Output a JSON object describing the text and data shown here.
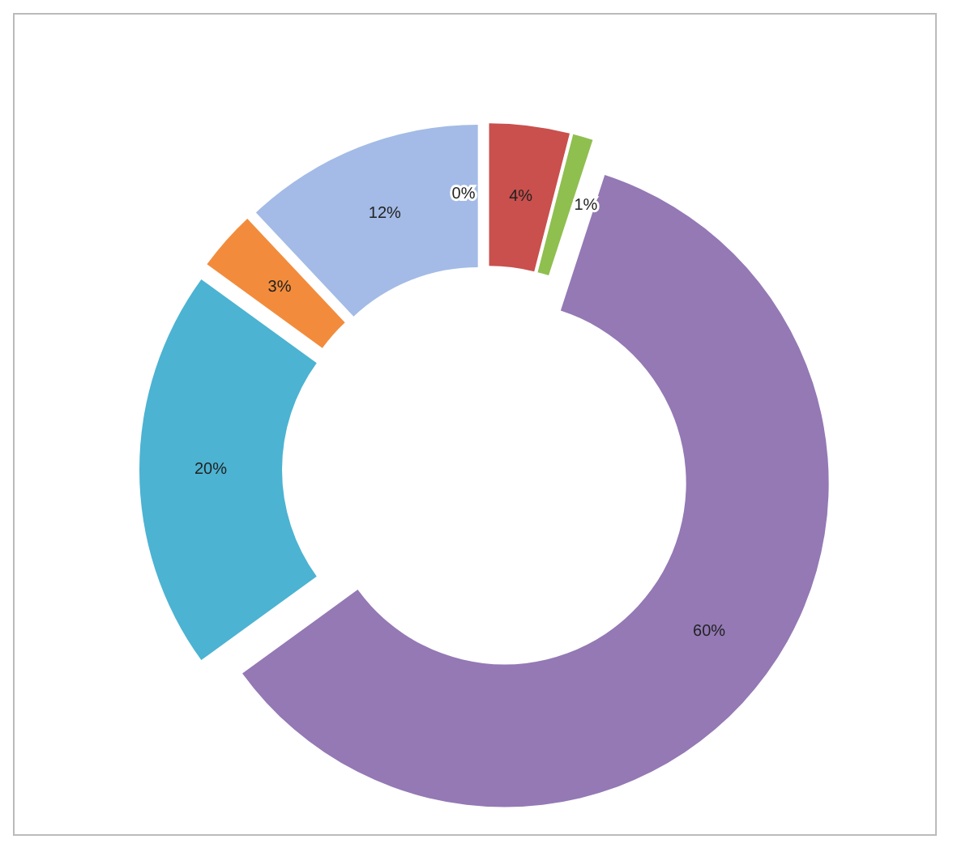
{
  "chart_data": {
    "type": "donut",
    "categories": [
      null,
      null,
      null,
      null,
      null,
      null,
      null
    ],
    "values": [
      0,
      4,
      1,
      60,
      20,
      3,
      12
    ],
    "value_labels": [
      "0%",
      "4%",
      "1%",
      "60%",
      "20%",
      "3%",
      "12%"
    ],
    "colors": [
      "#4f81bd",
      "#c9504d",
      "#8fbf4f",
      "#9479b5",
      "#4cb3d2",
      "#f28c3c",
      "#a3bbe6"
    ]
  }
}
